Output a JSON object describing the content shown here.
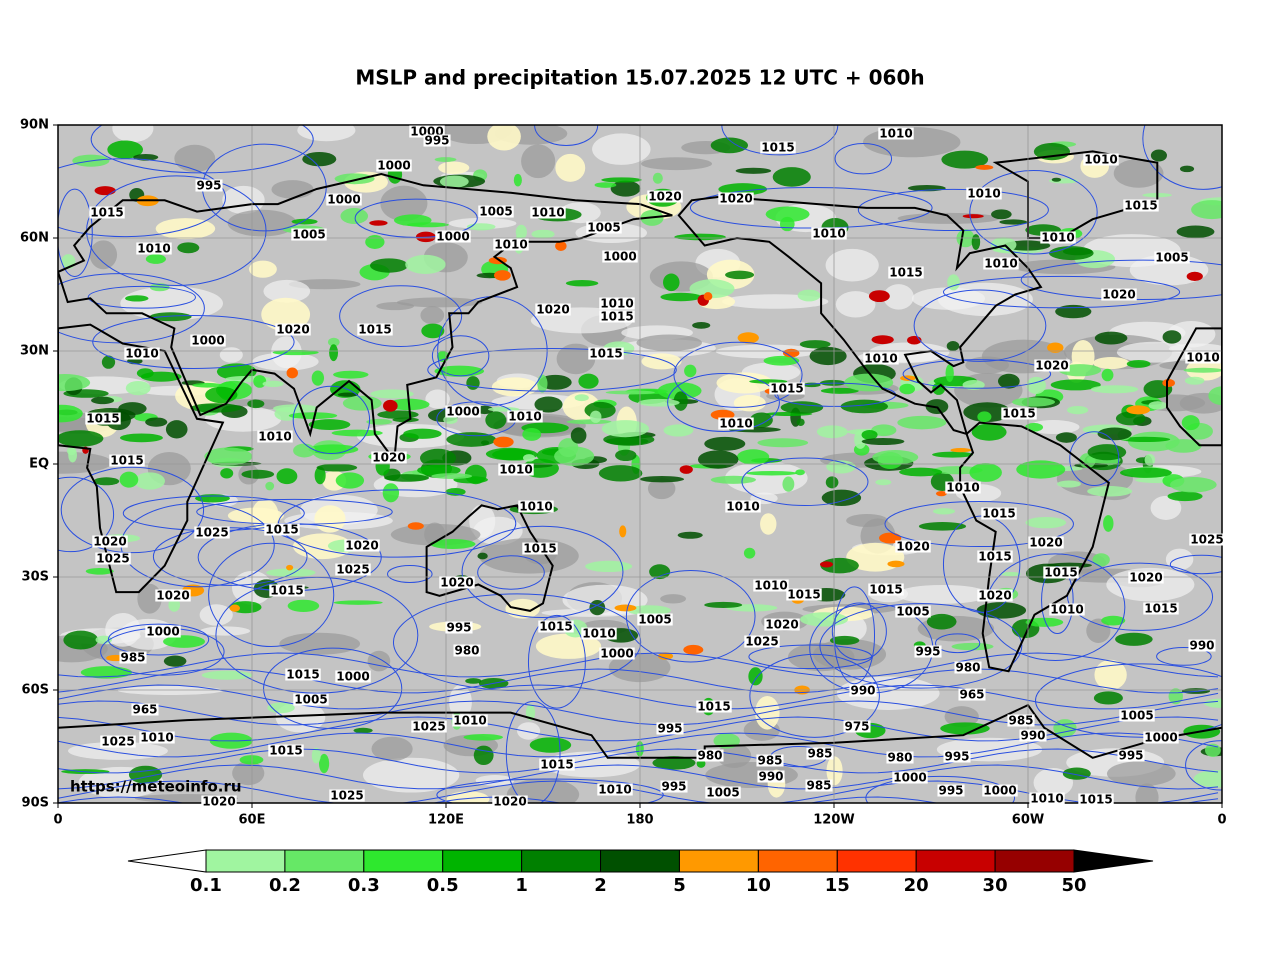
{
  "title": "MSLP and precipitation 15.07.2025 12 UTC + 060h",
  "map": {
    "lat_ticks": [
      "90N",
      "60N",
      "30N",
      "EQ",
      "30S",
      "60S",
      "90S"
    ],
    "lon_ticks": [
      "0",
      "60E",
      "120E",
      "180",
      "120W",
      "60W",
      "0"
    ],
    "isobar_labels": [
      1000,
      995,
      1010,
      1015,
      1010,
      1000,
      995,
      1000,
      1015,
      1005,
      1010,
      1020,
      1020,
      1010,
      1015,
      1010,
      1005,
      1000,
      1010,
      1005,
      1000,
      1010,
      1010,
      1005,
      1015,
      1010,
      1020,
      1020,
      1010,
      1015,
      1020,
      1015,
      1000,
      1010,
      1015,
      1010,
      1020,
      1010,
      1015,
      1015,
      1000,
      1010,
      1010,
      1015,
      1010,
      1015,
      1020,
      1010,
      1010,
      1010,
      1010,
      1015,
      1015,
      1025,
      1020,
      1025,
      1020,
      1015,
      1020,
      1020,
      1025,
      1025,
      1015,
      1020,
      1015,
      1020,
      1015,
      1020,
      1010,
      1015,
      1015,
      1020,
      1010,
      1015,
      1005,
      1005,
      1015,
      1010,
      1020,
      1025,
      1000,
      995,
      980,
      1000,
      995,
      990,
      980,
      985,
      1000,
      1015,
      990,
      965,
      1005,
      965,
      1015,
      1005,
      1010,
      995,
      975,
      1025,
      985,
      1010,
      990,
      1025,
      1015,
      1000,
      980,
      985,
      980,
      995,
      1015,
      985,
      995,
      990,
      1000,
      985,
      995,
      995,
      1000,
      1010,
      1010,
      1015,
      1025,
      1020,
      1020,
      1005
    ],
    "credit": "https://meteoinfo.ru"
  },
  "colorbar": {
    "levels": [
      0.1,
      0.2,
      0.3,
      0.5,
      1,
      2,
      5,
      10,
      15,
      20,
      30,
      50
    ],
    "colors": [
      "#a0f5a0",
      "#66e866",
      "#2ee82e",
      "#00b400",
      "#008000",
      "#005000",
      "#ff9900",
      "#ff6400",
      "#ff3200",
      "#c80000",
      "#960000"
    ]
  }
}
